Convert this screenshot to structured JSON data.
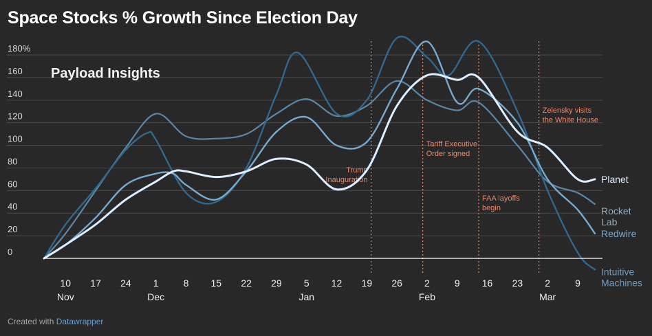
{
  "title": "Space Stocks % Growth Since Election Day",
  "watermark": "Payload Insights",
  "footer": {
    "prefix": "Created with ",
    "link": "Datawrapper"
  },
  "colors": {
    "background": "#282828",
    "planet": "#ddeeff",
    "rocket_lab": "#5b86a5",
    "redwire": "#78aacd",
    "intuitive_machines": "#33678c",
    "annotation": "#e8896a",
    "grid": "#4a4a4a"
  },
  "chart_data": {
    "type": "line",
    "x_unit": "date",
    "x_range": [
      "2024-11-05",
      "2025-03-13"
    ],
    "ylim": [
      0,
      180
    ],
    "y_ticks": [
      0,
      20,
      40,
      60,
      80,
      100,
      120,
      140,
      160,
      180
    ],
    "y_tick_labels": [
      "0",
      "20",
      "40",
      "60",
      "80",
      "100",
      "120",
      "140",
      "160",
      "180%"
    ],
    "grid": true,
    "x_ticks": [
      {
        "date": "2024-11-10",
        "label": "10",
        "month": "Nov"
      },
      {
        "date": "2024-11-17",
        "label": "17",
        "month": ""
      },
      {
        "date": "2024-11-24",
        "label": "24",
        "month": ""
      },
      {
        "date": "2024-12-01",
        "label": "1",
        "month": "Dec"
      },
      {
        "date": "2024-12-08",
        "label": "8",
        "month": ""
      },
      {
        "date": "2024-12-15",
        "label": "15",
        "month": ""
      },
      {
        "date": "2024-12-22",
        "label": "22",
        "month": ""
      },
      {
        "date": "2024-12-29",
        "label": "29",
        "month": ""
      },
      {
        "date": "2025-01-05",
        "label": "5",
        "month": "Jan"
      },
      {
        "date": "2025-01-12",
        "label": "12",
        "month": ""
      },
      {
        "date": "2025-01-19",
        "label": "19",
        "month": ""
      },
      {
        "date": "2025-01-26",
        "label": "26",
        "month": ""
      },
      {
        "date": "2025-02-02",
        "label": "2",
        "month": "Feb"
      },
      {
        "date": "2025-02-09",
        "label": "9",
        "month": ""
      },
      {
        "date": "2025-02-16",
        "label": "16",
        "month": ""
      },
      {
        "date": "2025-02-23",
        "label": "23",
        "month": ""
      },
      {
        "date": "2025-03-02",
        "label": "2",
        "month": "Mar"
      },
      {
        "date": "2025-03-09",
        "label": "9",
        "month": ""
      }
    ],
    "annotations": [
      {
        "date": "2025-01-20",
        "lines": [
          "Trump",
          "Inauguration"
        ],
        "align": "end",
        "label_y": 76
      },
      {
        "date": "2025-02-01",
        "lines": [
          "Tariff Executive",
          "Order signed"
        ],
        "align": "start",
        "label_y": 99
      },
      {
        "date": "2025-02-14",
        "lines": [
          "FAA layoffs",
          "begin"
        ],
        "align": "start",
        "label_y": 51
      },
      {
        "date": "2025-02-28",
        "lines": [
          "Zelensky visits",
          "the White House"
        ],
        "align": "start",
        "label_y": 129
      }
    ],
    "series": [
      {
        "name": "Planet",
        "label_lines": [
          "Planet"
        ],
        "label_y": 70,
        "color": "#ddeeff",
        "width": 3,
        "points": [
          [
            "2024-11-05",
            0
          ],
          [
            "2024-11-10",
            12
          ],
          [
            "2024-11-17",
            30
          ],
          [
            "2024-11-24",
            52
          ],
          [
            "2024-12-01",
            68
          ],
          [
            "2024-12-05",
            77
          ],
          [
            "2024-12-08",
            77
          ],
          [
            "2024-12-15",
            72
          ],
          [
            "2024-12-22",
            77
          ],
          [
            "2024-12-29",
            88
          ],
          [
            "2025-01-05",
            83
          ],
          [
            "2025-01-12",
            61
          ],
          [
            "2025-01-19",
            78
          ],
          [
            "2025-01-26",
            135
          ],
          [
            "2025-02-02",
            162
          ],
          [
            "2025-02-09",
            158
          ],
          [
            "2025-02-14",
            160
          ],
          [
            "2025-02-23",
            112
          ],
          [
            "2025-03-02",
            98
          ],
          [
            "2025-03-09",
            70
          ],
          [
            "2025-03-13",
            70
          ]
        ]
      },
      {
        "name": "Rocket Lab",
        "label_lines": [
          "Rocket",
          "Lab"
        ],
        "label_y": 42,
        "color": "#5b86a5",
        "width": 2.2,
        "points": [
          [
            "2024-11-05",
            0
          ],
          [
            "2024-11-10",
            22
          ],
          [
            "2024-11-17",
            60
          ],
          [
            "2024-11-24",
            98
          ],
          [
            "2024-12-01",
            128
          ],
          [
            "2024-12-08",
            108
          ],
          [
            "2024-12-15",
            106
          ],
          [
            "2024-12-22",
            110
          ],
          [
            "2024-12-29",
            128
          ],
          [
            "2025-01-05",
            141
          ],
          [
            "2025-01-12",
            126
          ],
          [
            "2025-01-19",
            135
          ],
          [
            "2025-01-26",
            157
          ],
          [
            "2025-02-02",
            140
          ],
          [
            "2025-02-09",
            131
          ],
          [
            "2025-02-14",
            138
          ],
          [
            "2025-02-23",
            100
          ],
          [
            "2025-03-02",
            68
          ],
          [
            "2025-03-09",
            58
          ],
          [
            "2025-03-13",
            48
          ]
        ]
      },
      {
        "name": "Redwire",
        "label_lines": [
          "Redwire"
        ],
        "label_y": 22,
        "color": "#78aacd",
        "width": 2.4,
        "points": [
          [
            "2024-11-05",
            0
          ],
          [
            "2024-11-10",
            12
          ],
          [
            "2024-11-17",
            36
          ],
          [
            "2024-11-24",
            65
          ],
          [
            "2024-12-01",
            75
          ],
          [
            "2024-12-05",
            75
          ],
          [
            "2024-12-08",
            65
          ],
          [
            "2024-12-15",
            52
          ],
          [
            "2024-12-22",
            77
          ],
          [
            "2024-12-29",
            112
          ],
          [
            "2025-01-05",
            125
          ],
          [
            "2025-01-12",
            100
          ],
          [
            "2025-01-19",
            103
          ],
          [
            "2025-01-26",
            150
          ],
          [
            "2025-02-02",
            192
          ],
          [
            "2025-02-09",
            138
          ],
          [
            "2025-02-14",
            150
          ],
          [
            "2025-02-23",
            120
          ],
          [
            "2025-03-02",
            70
          ],
          [
            "2025-03-09",
            43
          ],
          [
            "2025-03-13",
            22
          ]
        ]
      },
      {
        "name": "Intuitive Machines",
        "label_lines": [
          "Intuitive",
          "Machines"
        ],
        "label_y": -12,
        "color": "#33678c",
        "width": 2.4,
        "points": [
          [
            "2024-11-05",
            0
          ],
          [
            "2024-11-10",
            30
          ],
          [
            "2024-11-17",
            62
          ],
          [
            "2024-11-24",
            96
          ],
          [
            "2024-11-29",
            111
          ],
          [
            "2024-12-01",
            105
          ],
          [
            "2024-12-08",
            58
          ],
          [
            "2024-12-15",
            50
          ],
          [
            "2024-12-22",
            80
          ],
          [
            "2024-12-29",
            145
          ],
          [
            "2025-01-03",
            182
          ],
          [
            "2025-01-12",
            128
          ],
          [
            "2025-01-19",
            140
          ],
          [
            "2025-01-26",
            195
          ],
          [
            "2025-02-02",
            178
          ],
          [
            "2025-02-07",
            162
          ],
          [
            "2025-02-14",
            192
          ],
          [
            "2025-02-23",
            130
          ],
          [
            "2025-03-02",
            60
          ],
          [
            "2025-03-09",
            5
          ],
          [
            "2025-03-13",
            -10
          ]
        ]
      }
    ]
  }
}
